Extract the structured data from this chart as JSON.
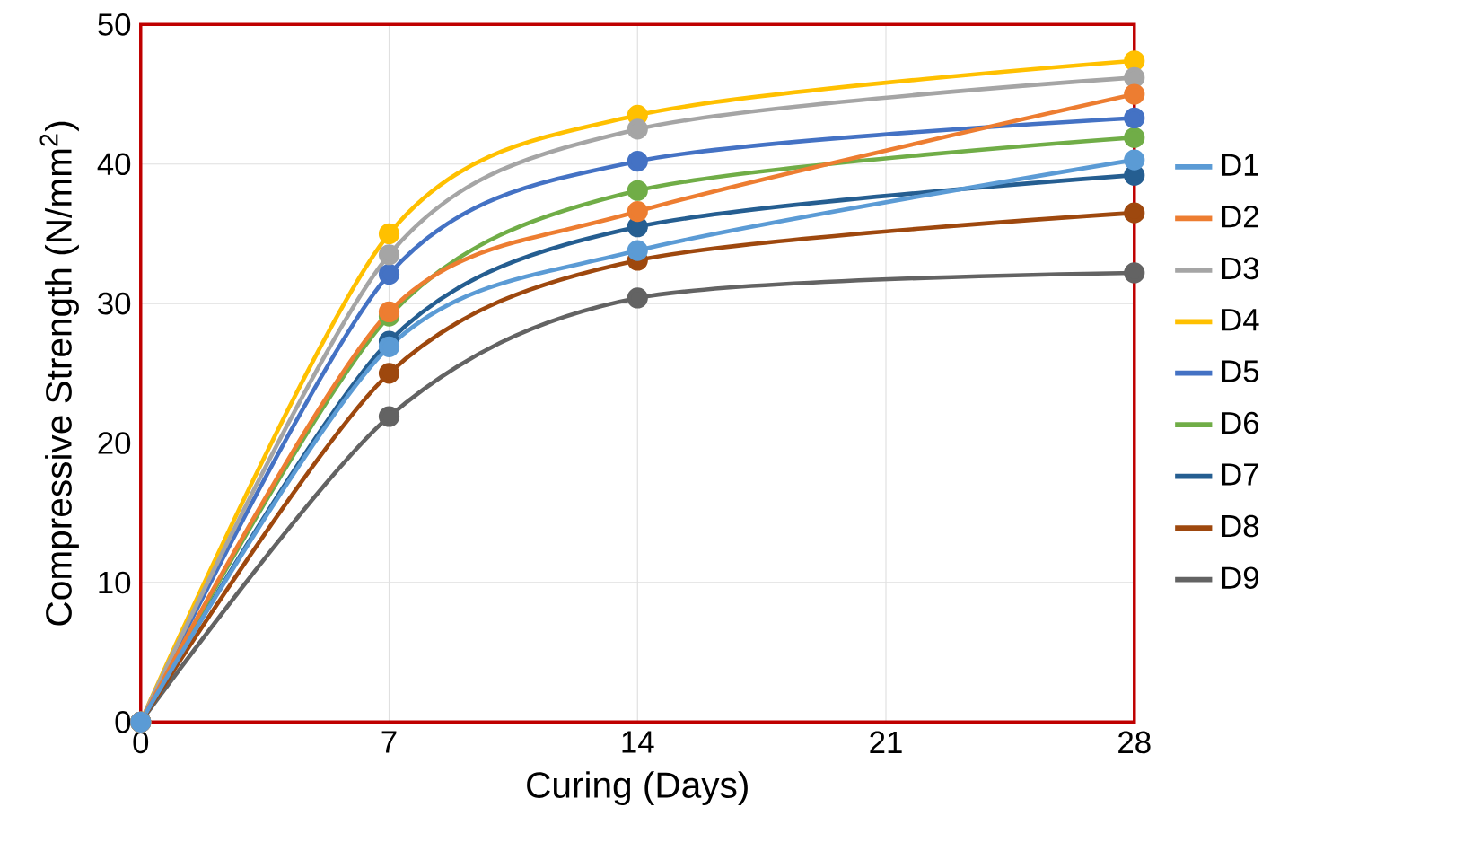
{
  "chart_data": {
    "type": "line",
    "xlabel": "Curing (Days)",
    "ylabel": "Compressive Strength (N/mm$^{2}$)",
    "x": [
      0,
      7,
      14,
      28
    ],
    "xlim": [
      0,
      28
    ],
    "xticks": [
      0,
      7,
      14,
      21,
      28
    ],
    "ylim": [
      0,
      50
    ],
    "yticks": [
      0,
      10,
      20,
      30,
      40,
      50
    ],
    "grid": true,
    "legend": "right",
    "marker": "circle",
    "line_style": "solid",
    "series": [
      {
        "name": "D1",
        "color": "#5b9bd5",
        "values": [
          0,
          26.9,
          33.8,
          40.3
        ]
      },
      {
        "name": "D2",
        "color": "#ed7d31",
        "values": [
          0,
          29.4,
          36.6,
          45.0
        ]
      },
      {
        "name": "D3",
        "color": "#a5a5a5",
        "values": [
          0,
          33.5,
          42.5,
          46.2
        ]
      },
      {
        "name": "D4",
        "color": "#ffc000",
        "values": [
          0,
          35.0,
          43.5,
          47.4
        ]
      },
      {
        "name": "D5",
        "color": "#4472c4",
        "values": [
          0,
          32.1,
          40.2,
          43.3
        ]
      },
      {
        "name": "D6",
        "color": "#70ad47",
        "values": [
          0,
          29.1,
          38.1,
          41.9
        ]
      },
      {
        "name": "D7",
        "color": "#255e91",
        "values": [
          0,
          27.3,
          35.5,
          39.2
        ]
      },
      {
        "name": "D8",
        "color": "#9e480e",
        "values": [
          0,
          25.0,
          33.1,
          36.5
        ]
      },
      {
        "name": "D9",
        "color": "#636363",
        "values": [
          0,
          21.9,
          30.4,
          32.2
        ]
      }
    ]
  }
}
